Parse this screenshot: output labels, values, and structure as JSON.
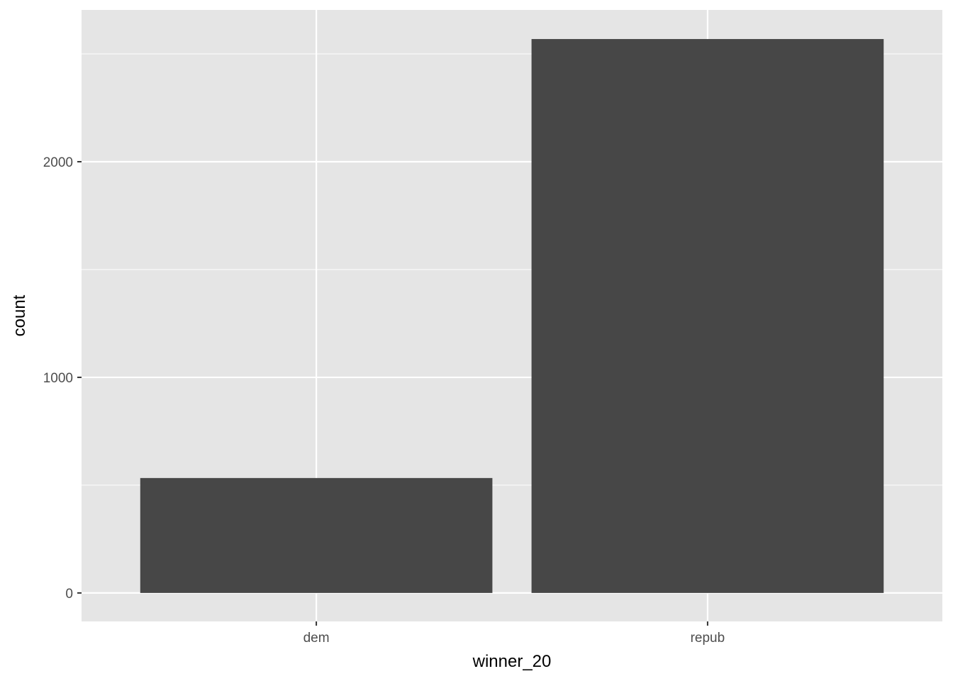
{
  "chart_data": {
    "type": "bar",
    "title": "",
    "xlabel": "winner_20",
    "ylabel": "count",
    "categories": [
      "dem",
      "repub"
    ],
    "values": [
      533,
      2569
    ],
    "ylim": [
      -132,
      2704
    ],
    "yticks": [
      0,
      1000,
      2000
    ],
    "ytick_labels": [
      "0",
      "1000",
      "2000"
    ],
    "grid": true,
    "colors": {
      "bar": "#474747",
      "panel": "#e5e5e5",
      "grid": "#ffffff"
    }
  }
}
